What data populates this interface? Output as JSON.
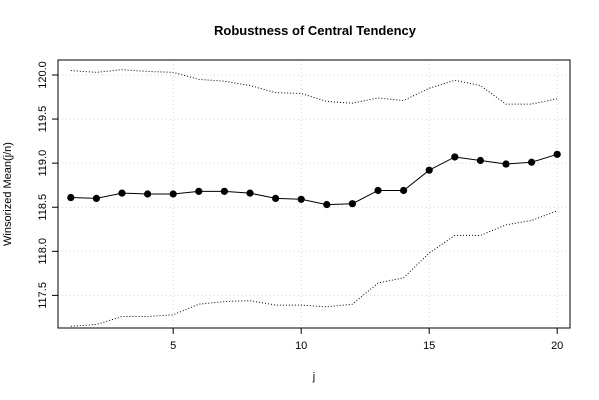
{
  "chart_data": {
    "type": "line",
    "title": "Robustness of Central Tendency",
    "xlabel": "j",
    "ylabel": "Winsorized Mean(j/n)",
    "xlim": [
      0.5,
      20.5
    ],
    "ylim": [
      117.13,
      120.17
    ],
    "x_ticks": [
      5,
      10,
      15,
      20
    ],
    "y_ticks": [
      117.5,
      118.0,
      118.5,
      119.0,
      119.5,
      120.0
    ],
    "x_tick_labels": [
      "5",
      "10",
      "15",
      "20"
    ],
    "y_tick_labels": [
      "117.5",
      "118.0",
      "118.5",
      "119.0",
      "119.5",
      "120.0"
    ],
    "grid": true,
    "x": [
      1,
      2,
      3,
      4,
      5,
      6,
      7,
      8,
      9,
      10,
      11,
      12,
      13,
      14,
      15,
      16,
      17,
      18,
      19,
      20
    ],
    "series": [
      {
        "role": "upper",
        "style": "dotted",
        "values": [
          120.05,
          120.03,
          120.06,
          120.04,
          120.03,
          119.95,
          119.93,
          119.88,
          119.8,
          119.79,
          119.7,
          119.68,
          119.74,
          119.71,
          119.85,
          119.94,
          119.88,
          119.67,
          119.67,
          119.73
        ]
      },
      {
        "role": "mean",
        "style": "solid-markers",
        "values": [
          118.61,
          118.6,
          118.66,
          118.65,
          118.65,
          118.68,
          118.68,
          118.66,
          118.6,
          118.59,
          118.53,
          118.54,
          118.69,
          118.69,
          118.92,
          119.07,
          119.03,
          118.99,
          119.01,
          119.1
        ]
      },
      {
        "role": "lower",
        "style": "dotted",
        "values": [
          117.15,
          117.17,
          117.26,
          117.26,
          117.28,
          117.4,
          117.43,
          117.44,
          117.39,
          117.39,
          117.37,
          117.4,
          117.64,
          117.7,
          117.98,
          118.18,
          118.18,
          118.3,
          118.35,
          118.46
        ]
      }
    ]
  }
}
